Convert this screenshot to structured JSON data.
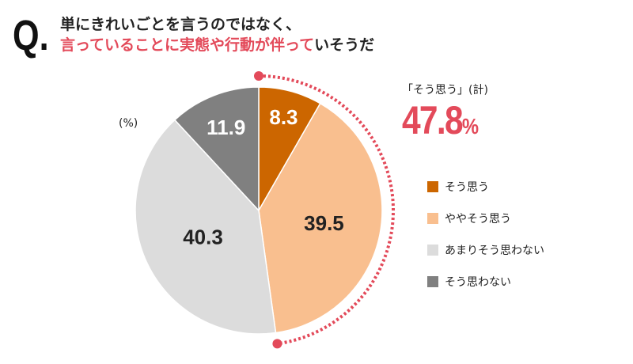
{
  "question": {
    "prefix": "Q.",
    "line1": "単にきれいごとを言うのではなく、",
    "line2_highlight": "言っていることに実態や行動が伴って",
    "line2_rest": "いそうだ"
  },
  "unit_label": "(%)",
  "summary": {
    "label": "「そう思う」(計)",
    "value": "47.8",
    "unit": "%"
  },
  "colors": {
    "accent": "#e34a5a"
  },
  "chart_data": {
    "type": "pie",
    "start": "top, clockwise",
    "categories": [
      "そう思う",
      "ややそう思う",
      "あまりそう思わない",
      "そう思わない"
    ],
    "values": [
      8.3,
      39.5,
      40.3,
      11.9
    ],
    "labels": [
      "8.3",
      "39.5",
      "40.3",
      "11.9"
    ],
    "colors": [
      "#cc6600",
      "#f9bf8f",
      "#dcdcdc",
      "#808080"
    ],
    "label_colors": [
      "#ffffff",
      "#222222",
      "#222222",
      "#ffffff"
    ],
    "highlight_arc_percent": 47.8,
    "legend_position": "right"
  }
}
